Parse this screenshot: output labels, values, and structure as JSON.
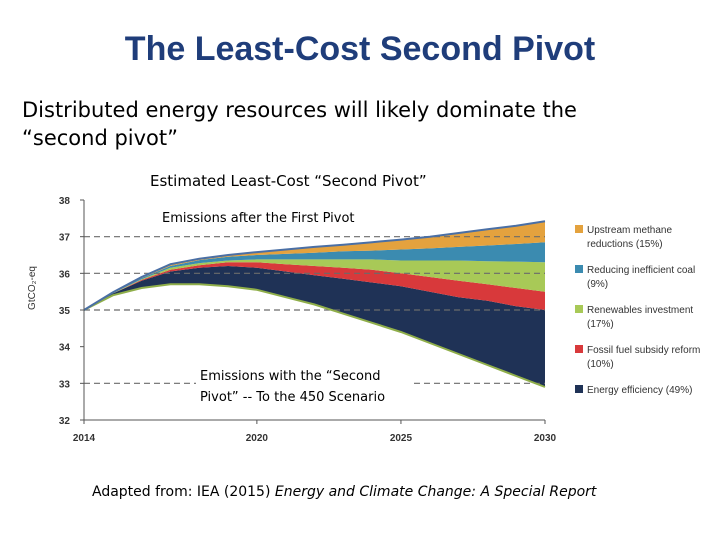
{
  "slide": {
    "title": "The Least-Cost Second Pivot",
    "subtitle": "Distributed energy resources will likely dominate the “second pivot”",
    "source_prefix": "Adapted from: IEA (2015) ",
    "source_title": "Energy and Climate Change: A Special Report"
  },
  "chart_data": {
    "type": "area",
    "title": "Estimated Least-Cost “Second Pivot”",
    "ylabel": "GtCO₂-eq",
    "xlabel": "",
    "xlim": [
      2014,
      2030
    ],
    "ylim": [
      32,
      38
    ],
    "x_ticks": [
      2014,
      2020,
      2025,
      2030
    ],
    "y_ticks": [
      32,
      33,
      34,
      35,
      36,
      37,
      38
    ],
    "x": [
      2014,
      2015,
      2016,
      2017,
      2018,
      2019,
      2020,
      2021,
      2022,
      2023,
      2024,
      2025,
      2026,
      2027,
      2028,
      2029,
      2030
    ],
    "boundaries": [
      {
        "name": "Emissions with the “Second Pivot”",
        "values": [
          35.0,
          35.4,
          35.6,
          35.7,
          35.7,
          35.65,
          35.55,
          35.35,
          35.15,
          34.9,
          34.65,
          34.4,
          34.1,
          33.8,
          33.5,
          33.2,
          32.9
        ]
      },
      {
        "name": "EE top",
        "values": [
          35.0,
          35.45,
          35.8,
          36.05,
          36.15,
          36.2,
          36.15,
          36.05,
          35.95,
          35.85,
          35.75,
          35.65,
          35.5,
          35.35,
          35.25,
          35.1,
          35.0
        ]
      },
      {
        "name": "FF top",
        "values": [
          35.0,
          35.45,
          35.82,
          36.1,
          36.22,
          36.3,
          36.3,
          36.25,
          36.2,
          36.15,
          36.1,
          36.0,
          35.9,
          35.8,
          35.7,
          35.6,
          35.5
        ]
      },
      {
        "name": "RE top",
        "values": [
          35.0,
          35.46,
          35.84,
          36.15,
          36.28,
          36.35,
          36.38,
          36.38,
          36.38,
          36.38,
          36.38,
          36.35,
          36.35,
          36.35,
          36.33,
          36.32,
          36.3
        ]
      },
      {
        "name": "Coal top",
        "values": [
          35.0,
          35.47,
          35.87,
          36.2,
          36.36,
          36.45,
          36.5,
          36.53,
          36.56,
          36.6,
          36.62,
          36.65,
          36.68,
          36.72,
          36.76,
          36.8,
          36.85
        ]
      },
      {
        "name": "Emissions after the First Pivot",
        "values": [
          35.0,
          35.48,
          35.9,
          36.25,
          36.4,
          36.5,
          36.58,
          36.65,
          36.72,
          36.78,
          36.85,
          36.92,
          37.0,
          37.1,
          37.2,
          37.3,
          37.42
        ]
      }
    ],
    "series": [
      {
        "name": "Energy efficiency (49%)",
        "color": "#1f3256"
      },
      {
        "name": "Fossil fuel subsidy reform (10%)",
        "color": "#d8393b"
      },
      {
        "name": "Renewables investment (17%)",
        "color": "#a8c957"
      },
      {
        "name": "Reducing inefficient coal (9%)",
        "color": "#3b8bb0"
      },
      {
        "name": "Upstream methane reductions (15%)",
        "color": "#e4a23e"
      }
    ],
    "reference_lines": [
      {
        "label": "Emissions after the First Pivot",
        "y": 37.0
      },
      {
        "label": "",
        "y": 36.0
      },
      {
        "label": "",
        "y": 35.0
      },
      {
        "label": "Emissions with the “Second Pivot” -- To the 450 Scenario",
        "y": 33.0
      }
    ],
    "annotations": {
      "top": "Emissions after the First Pivot",
      "bottom_line1": "Emissions with the “Second",
      "bottom_line2": "Pivot” -- To the 450 Scenario"
    },
    "legend": [
      {
        "line1": "Upstream methane",
        "line2": "reductions (15%)",
        "color": "#e4a23e"
      },
      {
        "line1": "Reducing inefficient coal",
        "line2": "(9%)",
        "color": "#3b8bb0"
      },
      {
        "line1": "Renewables investment",
        "line2": "(17%)",
        "color": "#a8c957"
      },
      {
        "line1": "Fossil fuel subsidy reform",
        "line2": "(10%)",
        "color": "#d8393b"
      },
      {
        "line1": "Energy efficiency (49%)",
        "line2": "",
        "color": "#1f3256"
      }
    ],
    "legend_position": "right"
  }
}
